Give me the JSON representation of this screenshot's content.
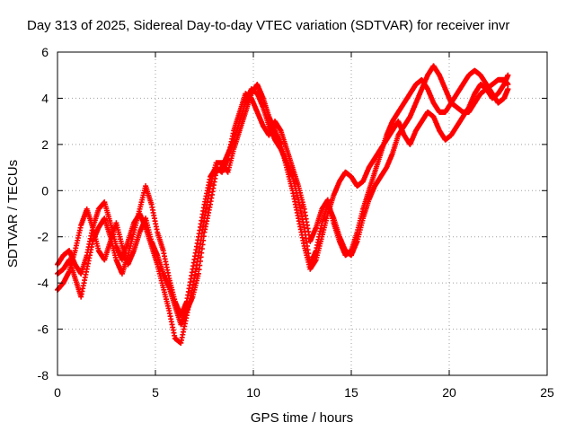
{
  "chart_data": {
    "type": "scatter",
    "title": "Day 313 of 2025, Sidereal Day-to-day VTEC variation (SDTVAR) for receiver invr",
    "xlabel": "GPS time / hours",
    "ylabel": "SDTVAR / TECUs",
    "xlim": [
      0,
      25
    ],
    "ylim": [
      -8,
      6
    ],
    "xticks": [
      "0",
      "5",
      "10",
      "15",
      "20",
      "25"
    ],
    "yticks": [
      "-8",
      "-6",
      "-4",
      "-2",
      "0",
      "2",
      "4",
      "6"
    ],
    "grid": true,
    "marker": "plus",
    "color": "#ff0000",
    "series": [
      {
        "x": [
          0.0,
          0.3,
          0.6,
          0.9,
          1.2,
          1.5,
          1.8,
          2.1,
          2.4,
          2.7,
          3.0,
          3.3,
          3.6,
          3.9,
          4.2,
          4.5,
          4.8,
          5.1,
          5.4,
          5.7,
          6.0,
          6.3,
          6.6,
          6.9,
          7.2,
          7.5,
          7.8,
          8.1,
          8.4,
          8.7,
          9.0,
          9.3,
          9.6,
          9.9,
          10.2,
          10.5,
          10.8,
          11.1,
          11.4,
          11.7,
          12.0,
          12.3,
          12.6,
          12.9,
          13.2,
          13.5,
          13.8,
          14.1,
          14.4,
          14.7,
          15.0,
          15.3,
          15.6,
          15.9,
          16.2,
          16.5,
          16.8,
          17.1,
          17.4,
          17.7,
          18.0,
          18.3,
          18.6,
          18.9,
          19.2,
          19.5,
          19.8,
          20.1,
          20.4,
          20.7,
          21.0,
          21.3,
          21.6,
          21.9,
          22.2,
          22.5,
          22.8,
          23.0
        ],
        "y": [
          -4.3,
          -4.0,
          -3.5,
          -2.6,
          -1.5,
          -0.8,
          -1.6,
          -2.6,
          -3.0,
          -2.2,
          -1.4,
          -2.4,
          -3.2,
          -2.6,
          -1.8,
          -1.2,
          -2.2,
          -2.8,
          -3.6,
          -4.2,
          -5.0,
          -5.8,
          -5.2,
          -4.6,
          -3.6,
          -1.8,
          -0.6,
          0.8,
          1.0,
          1.6,
          2.2,
          3.0,
          3.8,
          4.4,
          4.2,
          3.6,
          2.8,
          2.2,
          1.8,
          1.2,
          0.6,
          -0.4,
          -1.6,
          -3.2,
          -2.6,
          -1.4,
          -0.6,
          -1.2,
          -2.0,
          -2.6,
          -2.8,
          -2.2,
          -1.2,
          -0.4,
          0.2,
          0.6,
          1.0,
          1.6,
          2.4,
          2.8,
          3.2,
          3.8,
          4.4,
          5.0,
          5.4,
          5.0,
          4.4,
          3.8,
          3.6,
          3.4,
          3.4,
          3.8,
          4.2,
          4.4,
          4.6,
          4.8,
          4.8,
          4.6
        ]
      },
      {
        "x": [
          0.0,
          0.3,
          0.6,
          0.9,
          1.2,
          1.5,
          1.8,
          2.1,
          2.4,
          2.7,
          3.0,
          3.3,
          3.6,
          3.9,
          4.2,
          4.5,
          4.8,
          5.1,
          5.4,
          5.7,
          6.0,
          6.3,
          6.6,
          6.9,
          7.2,
          7.5,
          7.8,
          8.1,
          8.4,
          8.7,
          9.0,
          9.3,
          9.6,
          9.9,
          10.2,
          10.5,
          10.8,
          11.1,
          11.4,
          11.7,
          12.0,
          12.3,
          12.6,
          12.9,
          13.2,
          13.5,
          13.8,
          14.1,
          14.4,
          14.7,
          15.0,
          15.3,
          15.6,
          15.9,
          16.2,
          16.5,
          16.8,
          17.1,
          17.4,
          17.7,
          18.0,
          18.3,
          18.6,
          18.9,
          19.2,
          19.5,
          19.8,
          20.1,
          20.4,
          20.7,
          21.0,
          21.3,
          21.6,
          21.9,
          22.2,
          22.5,
          22.8,
          23.0
        ],
        "y": [
          -3.2,
          -2.8,
          -2.6,
          -3.2,
          -3.6,
          -2.8,
          -1.6,
          -0.8,
          -0.5,
          -1.4,
          -2.4,
          -3.0,
          -2.2,
          -1.4,
          -1.0,
          -1.6,
          -2.4,
          -3.2,
          -4.2,
          -5.2,
          -6.4,
          -6.6,
          -5.4,
          -4.2,
          -2.8,
          -1.2,
          0.2,
          1.2,
          1.2,
          0.8,
          1.8,
          2.6,
          3.4,
          4.2,
          4.6,
          4.0,
          3.2,
          2.6,
          2.0,
          1.0,
          0.0,
          -1.2,
          -2.4,
          -3.4,
          -3.0,
          -2.0,
          -1.0,
          -0.2,
          0.4,
          0.8,
          0.6,
          0.2,
          0.4,
          1.0,
          1.4,
          1.8,
          2.2,
          2.6,
          3.0,
          2.4,
          2.0,
          2.6,
          3.0,
          3.4,
          3.2,
          2.6,
          2.2,
          2.4,
          2.8,
          3.2,
          3.6,
          4.2,
          4.6,
          4.4,
          4.0,
          4.2,
          4.6,
          5.0
        ]
      },
      {
        "x": [
          0.0,
          0.3,
          0.6,
          0.9,
          1.2,
          1.5,
          1.8,
          2.1,
          2.4,
          2.7,
          3.0,
          3.3,
          3.6,
          3.9,
          4.2,
          4.5,
          4.8,
          5.1,
          5.4,
          5.7,
          6.0,
          6.3,
          6.6,
          6.9,
          7.2,
          7.5,
          7.8,
          8.1,
          8.4,
          8.7,
          9.0,
          9.3,
          9.6,
          9.9,
          10.2,
          10.5,
          10.8,
          11.1,
          11.4,
          11.7,
          12.0,
          12.3,
          12.6,
          12.9,
          13.2,
          13.5,
          13.8,
          14.1,
          14.4,
          14.7,
          15.0,
          15.3,
          15.6,
          15.9,
          16.2,
          16.5,
          16.8,
          17.1,
          17.4,
          17.7,
          18.0,
          18.3,
          18.6,
          18.9,
          19.2,
          19.5,
          19.8,
          20.1,
          20.4,
          20.7,
          21.0,
          21.3,
          21.6,
          21.9,
          22.2,
          22.5,
          22.8,
          23.0
        ],
        "y": [
          -3.6,
          -3.4,
          -3.0,
          -3.8,
          -4.6,
          -3.4,
          -2.2,
          -1.6,
          -1.2,
          -2.0,
          -3.0,
          -3.6,
          -2.8,
          -1.8,
          -0.8,
          0.2,
          -0.6,
          -1.8,
          -2.6,
          -3.8,
          -4.8,
          -5.4,
          -4.8,
          -3.4,
          -2.0,
          -0.6,
          0.6,
          1.0,
          0.8,
          1.4,
          2.6,
          3.4,
          4.2,
          4.0,
          3.4,
          2.8,
          2.4,
          3.0,
          2.6,
          1.8,
          1.0,
          0.2,
          -0.8,
          -2.2,
          -1.6,
          -0.8,
          -0.4,
          -1.4,
          -2.2,
          -2.8,
          -2.6,
          -1.8,
          -0.8,
          0.0,
          0.8,
          1.6,
          2.4,
          3.0,
          3.4,
          3.8,
          4.2,
          4.6,
          4.8,
          4.4,
          3.8,
          3.4,
          3.4,
          3.8,
          4.2,
          4.6,
          5.0,
          5.2,
          5.0,
          4.6,
          4.2,
          3.8,
          4.0,
          4.4
        ]
      }
    ]
  }
}
